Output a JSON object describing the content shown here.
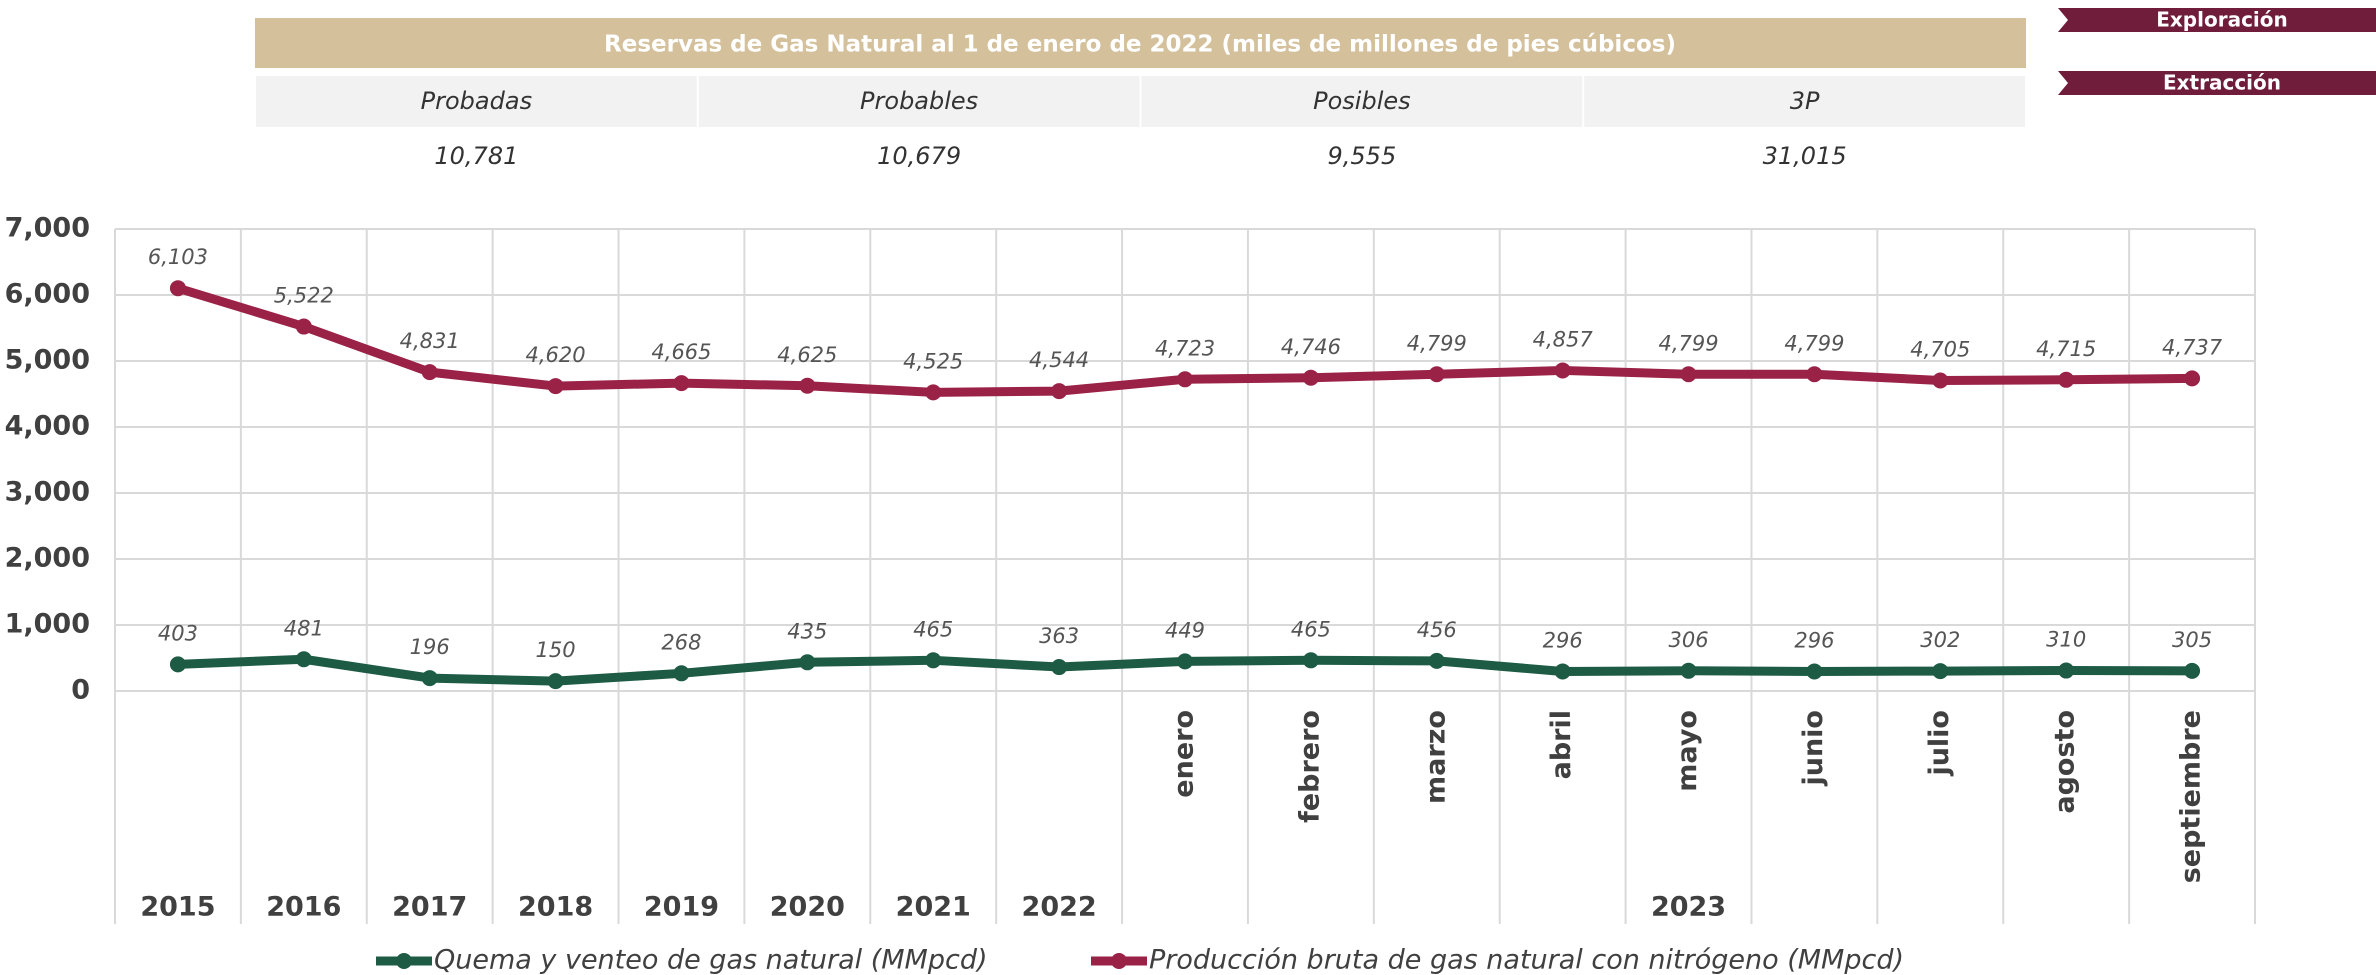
{
  "table": {
    "title": "Reservas de Gas Natural al 1 de enero de 2022 (miles de millones de pies cúbicos)",
    "headers": [
      "Probadas",
      "Probables",
      "Posibles",
      "3P"
    ],
    "rows": [
      [
        10781,
        10679,
        9555,
        31015
      ]
    ],
    "row_labels": [
      [
        "10,781",
        "10,679",
        "9,555",
        "31,015"
      ]
    ]
  },
  "buttons": [
    "Exploración",
    "Extracción"
  ],
  "chart_data": {
    "type": "line",
    "categories": [
      "2015",
      "2016",
      "2017",
      "2018",
      "2019",
      "2020",
      "2021",
      "2022",
      "enero",
      "febrero",
      "marzo",
      "abril",
      "mayo",
      "junio",
      "julio",
      "agosto",
      "septiembre"
    ],
    "category_group": "2023",
    "ylim": [
      0,
      7000
    ],
    "yticks": [
      0,
      {
        "value": 1000,
        "label": "1,000"
      },
      {
        "value": 2000,
        "label": "2,000"
      },
      {
        "value": 3000,
        "label": "3,000"
      },
      {
        "value": 4000,
        "label": "4,000"
      },
      {
        "value": 5000,
        "label": "5,000"
      },
      {
        "value": 6000,
        "label": "6,000"
      },
      {
        "value": 7000,
        "label": "7,000"
      }
    ],
    "grid": true,
    "series": [
      {
        "name": "Quema y venteo de gas natural (MMpcd)",
        "color": "#1e5b45",
        "values": [
          403,
          481,
          196,
          150,
          268,
          435,
          465,
          363,
          449,
          465,
          456,
          296,
          306,
          296,
          302,
          310,
          305
        ]
      },
      {
        "name": "Producción bruta de gas natural con nitrógeno (MMpcd)",
        "color": "#9b2247",
        "values": [
          6103,
          5522,
          4831,
          4620,
          4665,
          4625,
          4525,
          4544,
          4723,
          4746,
          4799,
          4857,
          4799,
          4799,
          4705,
          4715,
          4737
        ],
        "value_labels": [
          "6,103",
          "5,522",
          "4,831",
          "4,620",
          "4,665",
          "4,625",
          "4,525",
          "4,544",
          "4,723",
          "4,746",
          "4,799",
          "4,857",
          "4,799",
          "4,799",
          "4,705",
          "4,715",
          "4,737"
        ]
      }
    ]
  }
}
